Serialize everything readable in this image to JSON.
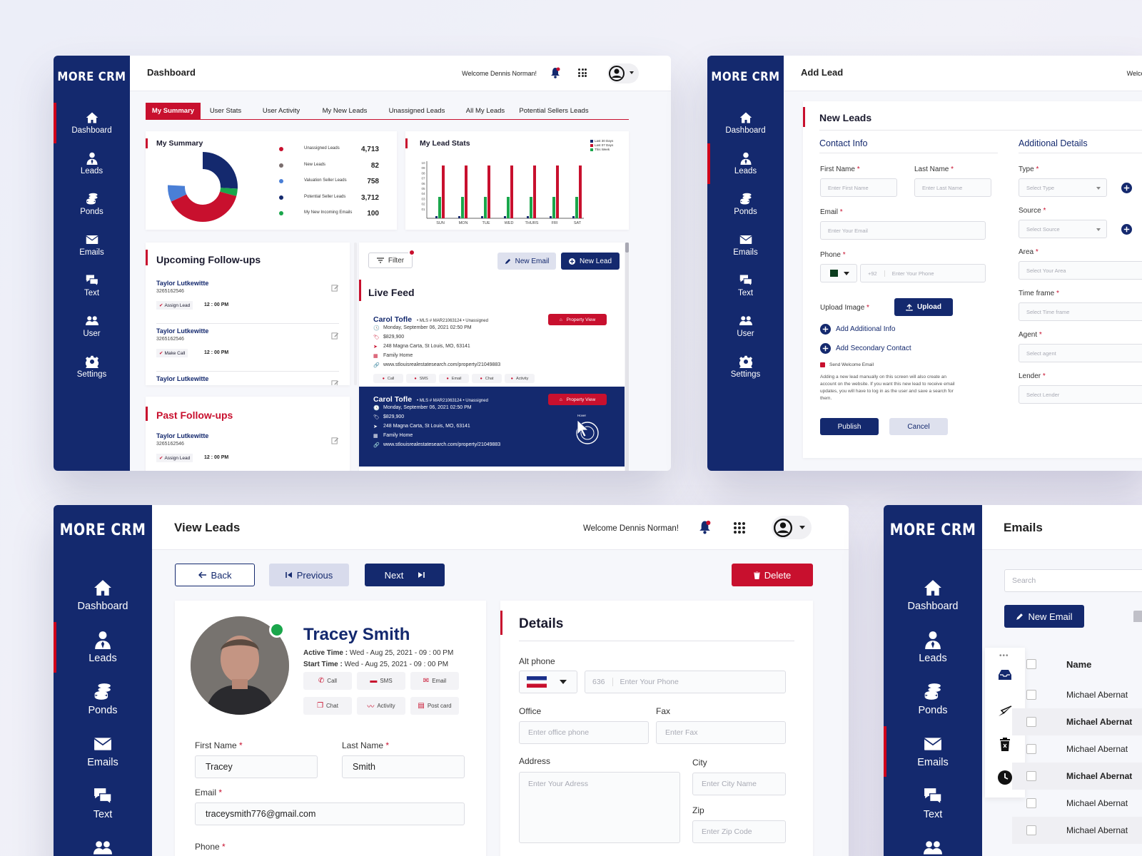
{
  "app": {
    "logo": "MORE CRM",
    "welcome": "Welcome Dennis Norman!",
    "welcome_short": "Welcom"
  },
  "nav": [
    {
      "label": "Dashboard",
      "icon": "home-icon"
    },
    {
      "label": "Leads",
      "icon": "user-tie-icon"
    },
    {
      "label": "Ponds",
      "icon": "coins-icon"
    },
    {
      "label": "Emails",
      "icon": "envelope-icon"
    },
    {
      "label": "Text",
      "icon": "chat-icon"
    },
    {
      "label": "User",
      "icon": "users-icon"
    },
    {
      "label": "Settings",
      "icon": "gear-icon"
    }
  ],
  "dashboard": {
    "title": "Dashboard",
    "tabs": [
      "My Summary",
      "User Stats",
      "User Activity",
      "My New Leads",
      "Unassigned Leads",
      "All My Leads",
      "Potential Sellers Leads"
    ],
    "summary": {
      "title": "My Summary",
      "items": [
        {
          "label": "Unassigned Leads",
          "value": "4,713",
          "color": "#c8102e"
        },
        {
          "label": "New Leads",
          "value": "82",
          "color": "#7a6e6e"
        },
        {
          "label": "Valuation Seller Leads",
          "value": "758",
          "color": "#4a7fd6"
        },
        {
          "label": "Potential Seller Leads",
          "value": "3,712",
          "color": "#14296e"
        },
        {
          "label": "My New Incoming Emails",
          "value": "100",
          "color": "#1aa64b"
        }
      ]
    },
    "stats": {
      "title": "My Lead Stats",
      "legend": [
        "Last 30 Days",
        "Last 07 Days",
        "This Week"
      ],
      "days": [
        "SUN",
        "MON",
        "TUE",
        "WED",
        "THURS",
        "FRI",
        "SAT"
      ],
      "yticks": [
        "10",
        "09",
        "08",
        "07",
        "06",
        "05",
        "04",
        "03",
        "02",
        "01"
      ]
    },
    "upcoming": {
      "title": "Upcoming Follow-ups",
      "items": [
        {
          "name": "Taylor Lutkewitte",
          "phone": "3265162546",
          "tag": "Assign Lead",
          "time": "12 : 00 PM"
        },
        {
          "name": "Taylor Lutkewitte",
          "phone": "3265162546",
          "tag": "Make Call",
          "time": "12 : 00 PM"
        },
        {
          "name": "Taylor Lutkewitte",
          "phone": "",
          "tag": "",
          "time": ""
        }
      ]
    },
    "past": {
      "title": "Past Follow-ups",
      "items": [
        {
          "name": "Taylor Lutkewitte",
          "phone": "3265162546",
          "tag": "Assign Lead",
          "time": "12 : 00 PM"
        }
      ]
    },
    "feed": {
      "filter": "Filter",
      "new_email": "New Email",
      "new_lead": "New Lead",
      "title": "Live Feed",
      "property_view": "Property View",
      "hover": "Hover",
      "actions": [
        "Call",
        "SMS",
        "Email",
        "Chat",
        "Activity"
      ],
      "items": [
        {
          "name": "Carol Tofle",
          "mls": "MLS # MAR21063124",
          "status": "Unassigned",
          "date": "Monday, September 06, 2021 02:50 PM",
          "price": "$829,900",
          "address": "248 Magna Carta, St Louis, MO, 63141",
          "type": "Family Home",
          "url": "www.stlouisrealestatesearch.com/property/21049883"
        },
        {
          "name": "Carol Tofle",
          "mls": "MLS # MAR21063124",
          "status": "Unassigned",
          "date": "Monday, September 06, 2021 02:50 PM",
          "price": "$829,900",
          "address": "248 Magna Carta, St Louis, MO, 63141",
          "type": "Family Home",
          "url": "www.stlouisrealestatesearch.com/property/21049883"
        }
      ]
    }
  },
  "addlead": {
    "title": "Add Lead",
    "section": "New Leads",
    "contact": "Contact Info",
    "additional": "Additional Details",
    "first_name": "First Name",
    "first_ph": "Enter First Name",
    "last_name": "Last Name",
    "last_ph": "Enter Last Name",
    "email": "Email",
    "email_ph": "Enter Your Email",
    "phone": "Phone",
    "phone_code": "+92",
    "phone_ph": "Enter Your Phone",
    "upload_label": "Upload Image",
    "upload": "Upload",
    "add_info": "Add Additional Info",
    "add_contact": "Add Secondary Contact",
    "send_welcome": "Send Welcome Email",
    "note": "Adding a new lead manually on this screen will also create an account on the website. If you want this new lead to receive email updates, you will have to log in as the user and save a search for them.",
    "publish": "Publish",
    "cancel": "Cancel",
    "type": "Type",
    "type_ph": "Select Type",
    "source": "Source",
    "source_ph": "Select Source",
    "area": "Area",
    "area_ph": "Select Your Area",
    "timeframe": "Time frame",
    "timeframe_ph": "Select Time frame",
    "agent": "Agent",
    "agent_ph": "Select agent",
    "lender": "Lender",
    "lender_ph": "Select Lender"
  },
  "viewleads": {
    "title": "View Leads",
    "back": "Back",
    "previous": "Previous",
    "next": "Next",
    "delete": "Delete",
    "name": "Tracey Smith",
    "active_label": "Active Time :",
    "active_value": "Wed - Aug 25, 2021 - 09 : 00 PM",
    "start_label": "Start Time :",
    "start_value": "Wed - Aug 25, 2021 - 09 : 00 PM",
    "actions": [
      "Call",
      "SMS",
      "Email",
      "Chat",
      "Activity",
      "Post card"
    ],
    "first_name": "First Name",
    "first_value": "Tracey",
    "last_name": "Last Name",
    "last_value": "Smith",
    "email": "Email",
    "email_value": "traceysmith776@gmail.com",
    "phone": "Phone",
    "details": "Details",
    "alt_phone": "Alt phone",
    "alt_code": "636",
    "alt_ph": "Enter Your Phone",
    "office": "Office",
    "office_ph": "Enter office phone",
    "fax": "Fax",
    "fax_ph": "Enter Fax",
    "address": "Address",
    "address_ph": "Enter Your Adress",
    "city": "City",
    "city_ph": "Enter City Name",
    "zip": "Zip",
    "zip_ph": "Enter Zip Code"
  },
  "emails": {
    "title": "Emails",
    "search_ph": "Search",
    "new_email": "New Email",
    "col_name": "Name",
    "rows": [
      "Michael Abernat",
      "Michael Abernat",
      "Michael Abernat",
      "Michael Abernat",
      "Michael Abernat",
      "Michael Abernat"
    ]
  },
  "colors": {
    "navy": "#14296e",
    "red": "#c8102e",
    "green": "#1aa64b"
  }
}
